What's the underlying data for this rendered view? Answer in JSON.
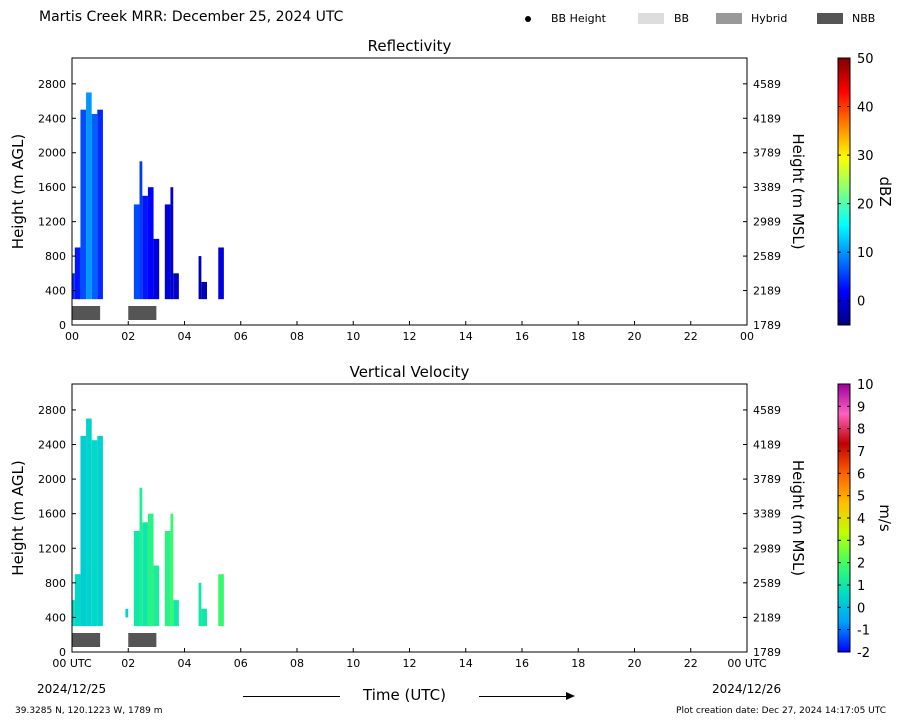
{
  "figure": {
    "title": "Martis Creek MRR:  December 25, 2024 UTC",
    "coords": "39.3285 N, 120.1223 W, 1789 m",
    "created": "Plot creation date: Dec 27, 2024 14:17:05 UTC",
    "time_axis_label": "Time (UTC)",
    "date_start": "2024/12/25",
    "date_end": "2024/12/26"
  },
  "legend": {
    "items": [
      {
        "label": "BB Height",
        "color": "#000000",
        "marker": "dot"
      },
      {
        "label": "BB",
        "color": "#dddddd",
        "marker": "box"
      },
      {
        "label": "Hybrid",
        "color": "#999999",
        "marker": "box"
      },
      {
        "label": "NBB",
        "color": "#555555",
        "marker": "box"
      }
    ]
  },
  "colors": {
    "bar_nbb": "#555555",
    "dbz_colormap": [
      "#00007f",
      "#0000ff",
      "#0080ff",
      "#00ffff",
      "#80ff80",
      "#ffff00",
      "#ff8000",
      "#ff0000",
      "#7f0000"
    ],
    "velocity_colormap": [
      "#0000ff",
      "#00a0ff",
      "#00e0c0",
      "#40ff60",
      "#c0ff00",
      "#ffc000",
      "#ff6000",
      "#c00000",
      "#ff60c0",
      "#a000a0"
    ]
  },
  "chart_data": [
    {
      "type": "heatmap",
      "title": "Reflectivity",
      "ylabel": "Height (m AGL)",
      "ylabel_right": "Height (m MSL)",
      "xlim": [
        0,
        24
      ],
      "ylim": [
        0,
        3100
      ],
      "x_ticks": [
        "00",
        "02",
        "04",
        "06",
        "08",
        "10",
        "12",
        "14",
        "16",
        "18",
        "20",
        "22",
        "00"
      ],
      "y_ticks": [
        0,
        400,
        800,
        1200,
        1600,
        2000,
        2400,
        2800
      ],
      "y_ticks_right": [
        1789,
        2189,
        2589,
        2989,
        3389,
        3789,
        4189,
        4589
      ],
      "colorbar": {
        "label": "dBZ",
        "range": [
          -5,
          50
        ],
        "ticks": [
          0,
          10,
          20,
          30,
          40,
          50
        ]
      },
      "cells": [
        {
          "x0": 0.0,
          "x1": 0.1,
          "y0": 300,
          "y1": 600,
          "value": 4
        },
        {
          "x0": 0.1,
          "x1": 0.3,
          "y0": 300,
          "y1": 900,
          "value": 3
        },
        {
          "x0": 0.3,
          "x1": 0.5,
          "y0": 300,
          "y1": 2500,
          "value": 6
        },
        {
          "x0": 0.5,
          "x1": 0.7,
          "y0": 300,
          "y1": 2700,
          "value": 10
        },
        {
          "x0": 0.7,
          "x1": 0.9,
          "y0": 300,
          "y1": 2450,
          "value": 7
        },
        {
          "x0": 0.9,
          "x1": 1.1,
          "y0": 300,
          "y1": 2500,
          "value": 4
        },
        {
          "x0": 2.2,
          "x1": 2.4,
          "y0": 300,
          "y1": 1400,
          "value": 6
        },
        {
          "x0": 2.4,
          "x1": 2.5,
          "y0": 300,
          "y1": 1900,
          "value": 5
        },
        {
          "x0": 2.5,
          "x1": 2.7,
          "y0": 300,
          "y1": 1500,
          "value": 3
        },
        {
          "x0": 2.7,
          "x1": 2.9,
          "y0": 300,
          "y1": 1600,
          "value": 2
        },
        {
          "x0": 2.9,
          "x1": 3.1,
          "y0": 300,
          "y1": 1000,
          "value": 0
        },
        {
          "x0": 3.3,
          "x1": 3.5,
          "y0": 300,
          "y1": 1400,
          "value": 0
        },
        {
          "x0": 3.5,
          "x1": 3.6,
          "y0": 300,
          "y1": 1600,
          "value": -1
        },
        {
          "x0": 3.6,
          "x1": 3.8,
          "y0": 300,
          "y1": 600,
          "value": -1
        },
        {
          "x0": 4.5,
          "x1": 4.6,
          "y0": 300,
          "y1": 800,
          "value": -2
        },
        {
          "x0": 4.6,
          "x1": 4.8,
          "y0": 300,
          "y1": 500,
          "value": -2
        },
        {
          "x0": 5.2,
          "x1": 5.4,
          "y0": 300,
          "y1": 900,
          "value": 0
        }
      ],
      "bars": [
        {
          "x0": 0.0,
          "x1": 1.0,
          "class": "NBB"
        },
        {
          "x0": 2.0,
          "x1": 3.0,
          "class": "NBB"
        }
      ]
    },
    {
      "type": "heatmap",
      "title": "Vertical Velocity",
      "ylabel": "Height (m AGL)",
      "ylabel_right": "Height (m MSL)",
      "xlim": [
        0,
        24
      ],
      "ylim": [
        0,
        3100
      ],
      "x_ticks": [
        "00 UTC",
        "02",
        "04",
        "06",
        "08",
        "10",
        "12",
        "14",
        "16",
        "18",
        "20",
        "22",
        "00 UTC"
      ],
      "y_ticks": [
        0,
        400,
        800,
        1200,
        1600,
        2000,
        2400,
        2800
      ],
      "y_ticks_right": [
        1789,
        2189,
        2589,
        2989,
        3389,
        3789,
        4189,
        4589
      ],
      "colorbar": {
        "label": "m/s",
        "range": [
          -2,
          10
        ],
        "ticks": [
          -2,
          -1,
          0,
          1,
          2,
          3,
          4,
          5,
          6,
          7,
          8,
          9,
          10
        ]
      },
      "cells": [
        {
          "x0": 0.0,
          "x1": 0.1,
          "y0": 300,
          "y1": 600,
          "value": 0.5
        },
        {
          "x0": 0.1,
          "x1": 0.3,
          "y0": 300,
          "y1": 900,
          "value": 0.5
        },
        {
          "x0": 0.3,
          "x1": 0.5,
          "y0": 300,
          "y1": 2500,
          "value": 0.3
        },
        {
          "x0": 0.5,
          "x1": 0.7,
          "y0": 300,
          "y1": 2700,
          "value": 0.4
        },
        {
          "x0": 0.7,
          "x1": 0.9,
          "y0": 300,
          "y1": 2450,
          "value": 0.5
        },
        {
          "x0": 0.9,
          "x1": 1.1,
          "y0": 300,
          "y1": 2500,
          "value": 0.4
        },
        {
          "x0": 1.9,
          "x1": 2.0,
          "y0": 400,
          "y1": 500,
          "value": 0.4
        },
        {
          "x0": 2.2,
          "x1": 2.4,
          "y0": 300,
          "y1": 1400,
          "value": 1.0
        },
        {
          "x0": 2.4,
          "x1": 2.5,
          "y0": 300,
          "y1": 1900,
          "value": 1.3
        },
        {
          "x0": 2.5,
          "x1": 2.7,
          "y0": 300,
          "y1": 1500,
          "value": 1.0
        },
        {
          "x0": 2.7,
          "x1": 2.9,
          "y0": 300,
          "y1": 1600,
          "value": 1.5
        },
        {
          "x0": 2.9,
          "x1": 3.1,
          "y0": 300,
          "y1": 1000,
          "value": 1.2
        },
        {
          "x0": 3.3,
          "x1": 3.5,
          "y0": 300,
          "y1": 1400,
          "value": 1.5
        },
        {
          "x0": 3.5,
          "x1": 3.6,
          "y0": 300,
          "y1": 1600,
          "value": 1.8
        },
        {
          "x0": 3.6,
          "x1": 3.8,
          "y0": 300,
          "y1": 600,
          "value": 1.0
        },
        {
          "x0": 4.5,
          "x1": 4.6,
          "y0": 300,
          "y1": 800,
          "value": 1.0
        },
        {
          "x0": 4.6,
          "x1": 4.8,
          "y0": 300,
          "y1": 500,
          "value": 1.0
        },
        {
          "x0": 5.2,
          "x1": 5.4,
          "y0": 300,
          "y1": 900,
          "value": 1.8
        }
      ],
      "bars": [
        {
          "x0": 0.0,
          "x1": 1.0,
          "class": "NBB"
        },
        {
          "x0": 2.0,
          "x1": 3.0,
          "class": "NBB"
        }
      ]
    }
  ]
}
